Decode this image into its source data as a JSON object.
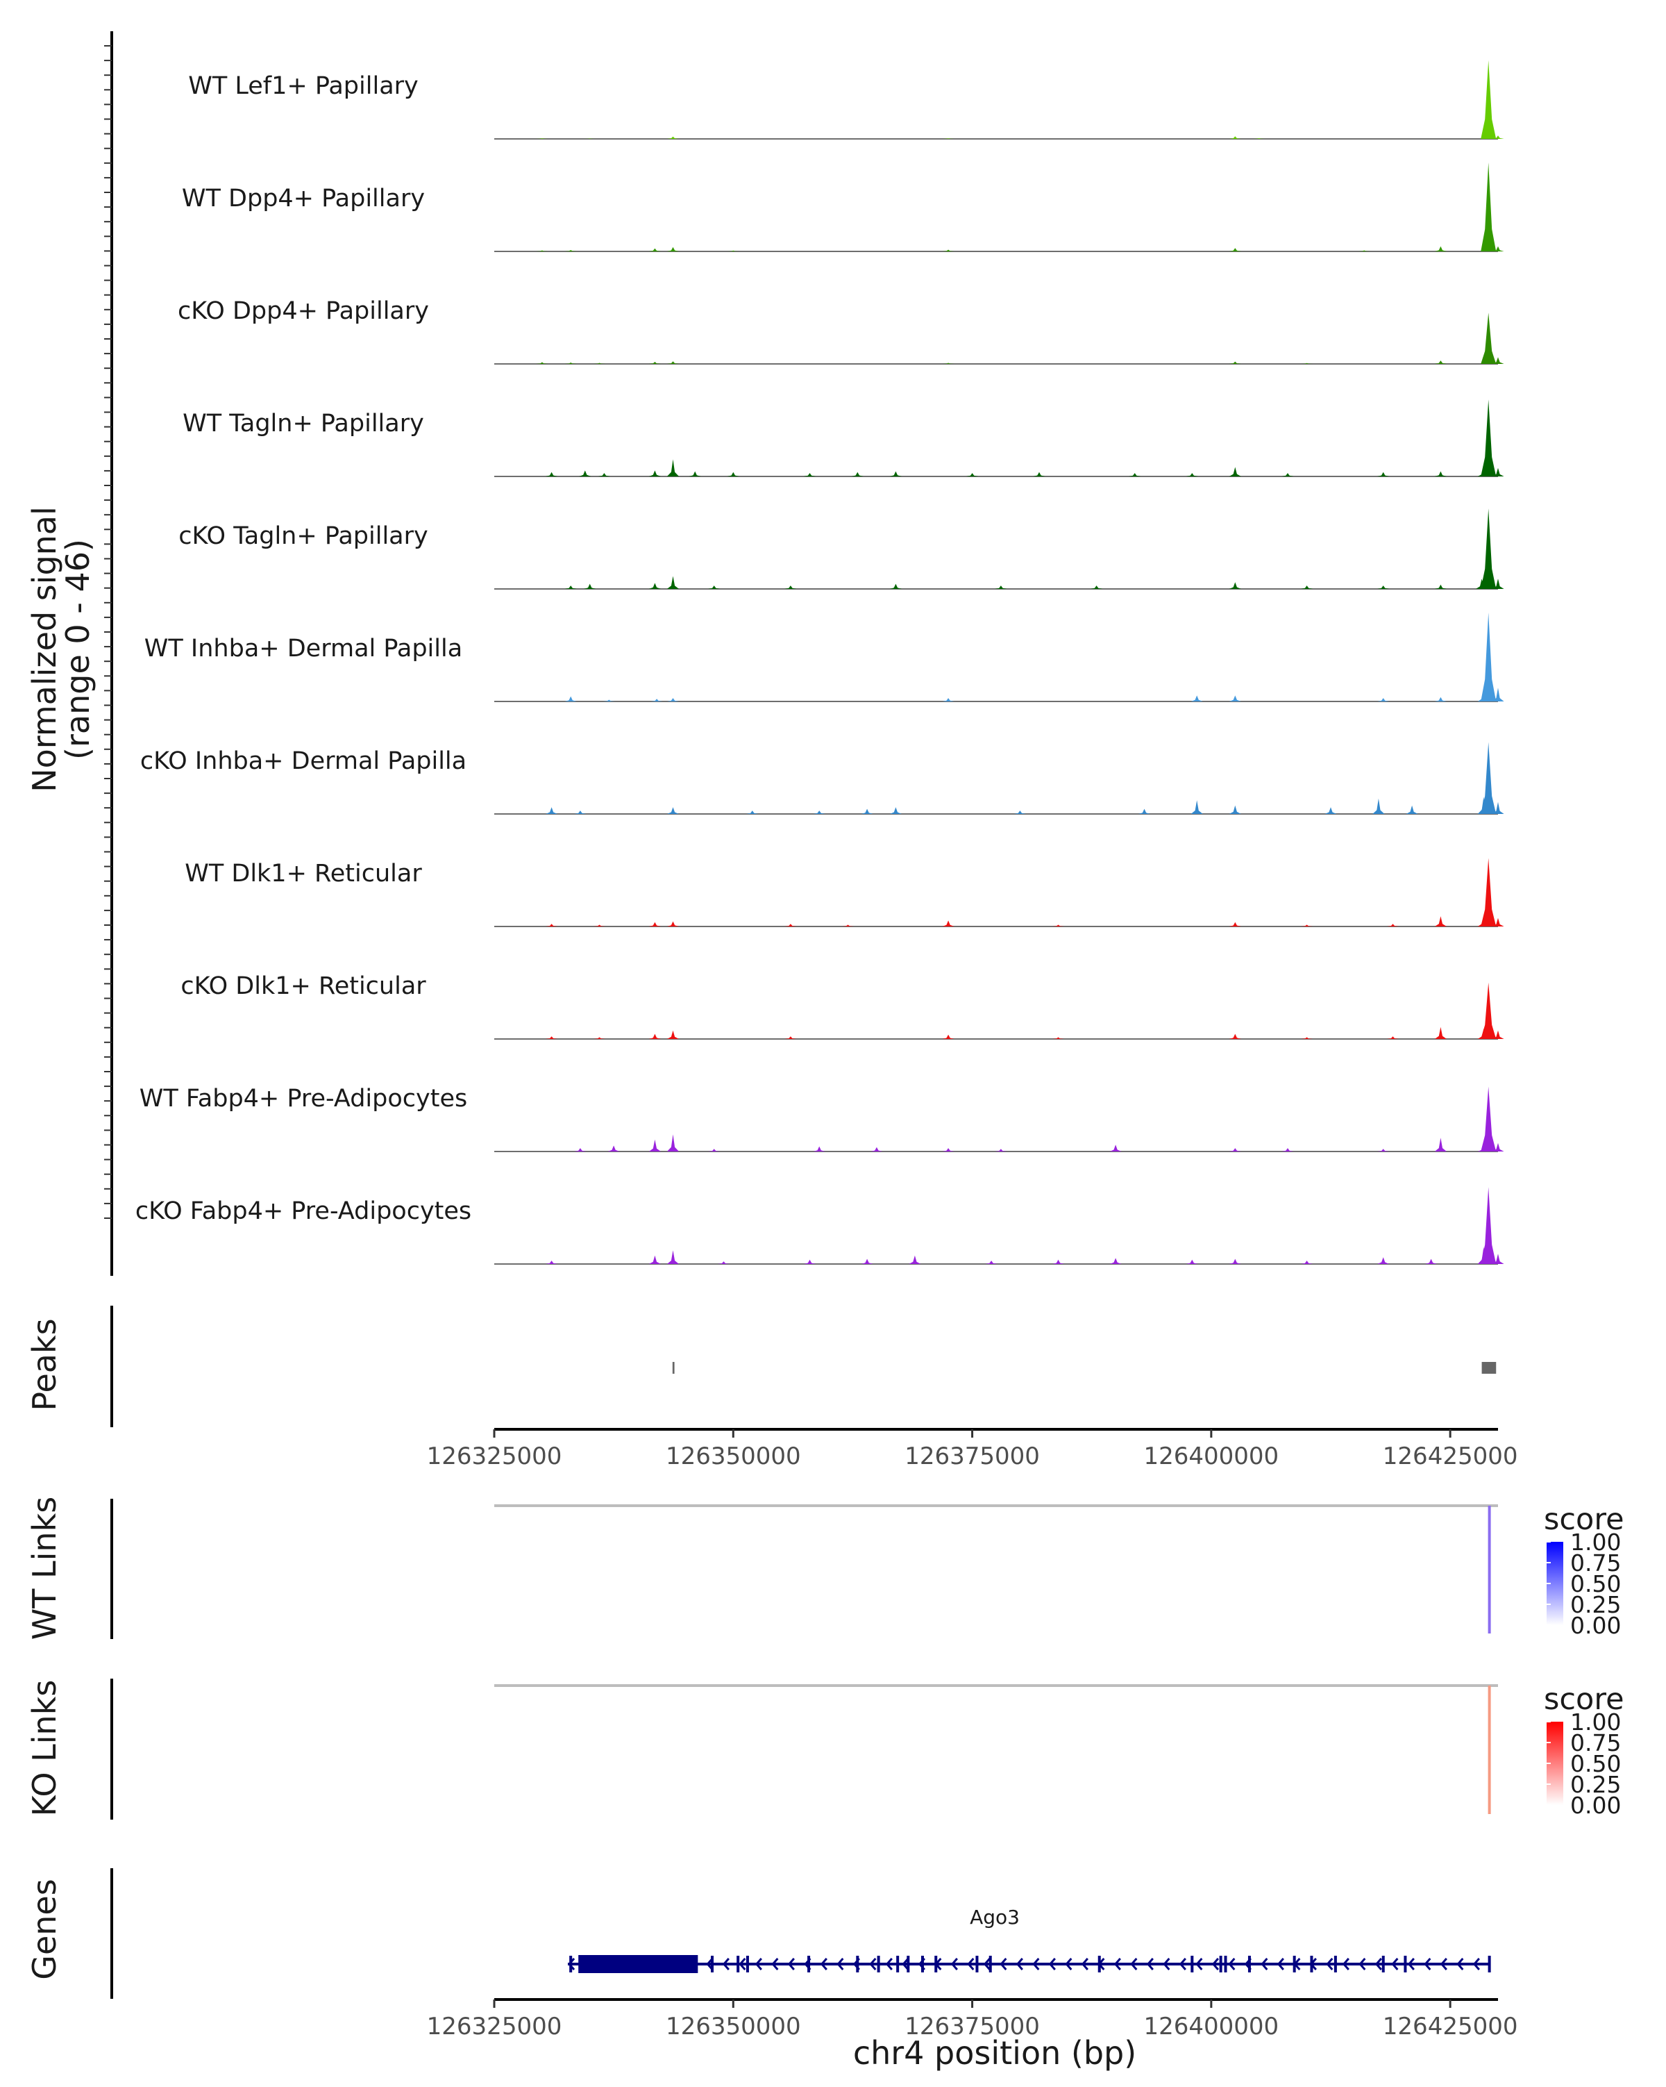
{
  "chart_data": {
    "type": "coverage",
    "region": {
      "chrom": "chr4",
      "start": 126325000,
      "end": 126430000
    },
    "xlabel": "chr4 position (bp)",
    "x_ticks": [
      "126325000",
      "126350000",
      "126375000",
      "126400000",
      "126425000"
    ],
    "x_tick_values": [
      126325000,
      126350000,
      126375000,
      126400000,
      126425000
    ],
    "coverage": {
      "ylabel": "Normalized signal",
      "ylabel_range": "(range 0 - 46)",
      "ylim": [
        0,
        46
      ],
      "tracks": [
        {
          "name": "WT Lef1+ Papillary",
          "color": "#66CC00",
          "points": [
            [
              126330000,
              0.3
            ],
            [
              126335000,
              0.2
            ],
            [
              126343700,
              1.4
            ],
            [
              126372500,
              0.3
            ],
            [
              126402500,
              1.5
            ],
            [
              126405000,
              0.4
            ],
            [
              126429000,
              46
            ],
            [
              126430000,
              2
            ]
          ]
        },
        {
          "name": "WT Dpp4+ Papillary",
          "color": "#339900",
          "points": [
            [
              126330000,
              0.6
            ],
            [
              126333000,
              0.8
            ],
            [
              126341800,
              1.8
            ],
            [
              126343700,
              2.5
            ],
            [
              126350000,
              0.5
            ],
            [
              126372500,
              1.0
            ],
            [
              126402500,
              2.0
            ],
            [
              126416000,
              0.6
            ],
            [
              126424000,
              3.0
            ],
            [
              126429000,
              52
            ],
            [
              126430000,
              3
            ]
          ]
        },
        {
          "name": "cKO Dpp4+ Papillary",
          "color": "#2E8B00",
          "points": [
            [
              126330000,
              1.0
            ],
            [
              126333000,
              0.8
            ],
            [
              126336000,
              0.6
            ],
            [
              126341800,
              1.2
            ],
            [
              126343700,
              1.5
            ],
            [
              126372500,
              0.6
            ],
            [
              126402500,
              1.4
            ],
            [
              126410000,
              0.5
            ],
            [
              126424000,
              2.0
            ],
            [
              126429000,
              30
            ],
            [
              126430000,
              4
            ]
          ]
        },
        {
          "name": "WT Tagln+ Papillary",
          "color": "#006400",
          "points": [
            [
              126331000,
              2.5
            ],
            [
              126334500,
              3.5
            ],
            [
              126336500,
              2.0
            ],
            [
              126341800,
              3.5
            ],
            [
              126343700,
              10.0
            ],
            [
              126346000,
              3.0
            ],
            [
              126350000,
              2.5
            ],
            [
              126358000,
              2.0
            ],
            [
              126363000,
              2.5
            ],
            [
              126367000,
              3.0
            ],
            [
              126375000,
              2.0
            ],
            [
              126382000,
              2.5
            ],
            [
              126392000,
              2.0
            ],
            [
              126398000,
              2.0
            ],
            [
              126402500,
              5.5
            ],
            [
              126408000,
              2.0
            ],
            [
              126418000,
              2.5
            ],
            [
              126424000,
              3.0
            ],
            [
              126428500,
              5.0
            ],
            [
              126429000,
              45
            ],
            [
              126430000,
              5
            ]
          ]
        },
        {
          "name": "cKO Tagln+ Papillary",
          "color": "#006400",
          "points": [
            [
              126333000,
              2.0
            ],
            [
              126335000,
              3.0
            ],
            [
              126341800,
              3.5
            ],
            [
              126343700,
              7.5
            ],
            [
              126348000,
              2.0
            ],
            [
              126356000,
              2.0
            ],
            [
              126367000,
              3.0
            ],
            [
              126378000,
              2.0
            ],
            [
              126388000,
              2.0
            ],
            [
              126402500,
              4.0
            ],
            [
              126410000,
              2.0
            ],
            [
              126418000,
              2.0
            ],
            [
              126424000,
              2.5
            ],
            [
              126428300,
              6.0
            ],
            [
              126429000,
              47
            ],
            [
              126430000,
              6
            ]
          ]
        },
        {
          "name": "WT Inhba+ Dermal Papilla",
          "color": "#4499DD",
          "points": [
            [
              126333000,
              3.0
            ],
            [
              126337000,
              1.0
            ],
            [
              126343700,
              2.0
            ],
            [
              126342000,
              1.5
            ],
            [
              126372500,
              2.0
            ],
            [
              126398500,
              3.5
            ],
            [
              126402500,
              3.5
            ],
            [
              126418000,
              2.0
            ],
            [
              126424000,
              2.5
            ],
            [
              126428500,
              6.0
            ],
            [
              126429000,
              52
            ],
            [
              126430000,
              8
            ]
          ]
        },
        {
          "name": "cKO Inhba+ Dermal Papilla",
          "color": "#3388CC",
          "points": [
            [
              126331000,
              4.0
            ],
            [
              126334000,
              2.0
            ],
            [
              126343700,
              4.0
            ],
            [
              126352000,
              2.0
            ],
            [
              126359000,
              2.0
            ],
            [
              126364000,
              3.0
            ],
            [
              126367000,
              4.0
            ],
            [
              126380000,
              2.0
            ],
            [
              126393000,
              3.0
            ],
            [
              126398500,
              8.0
            ],
            [
              126402500,
              5.0
            ],
            [
              126412500,
              4.0
            ],
            [
              126417500,
              9.0
            ],
            [
              126421000,
              5.0
            ],
            [
              126428500,
              10.0
            ],
            [
              126429000,
              42
            ],
            [
              126430000,
              7
            ]
          ]
        },
        {
          "name": "WT Dlk1+ Reticular",
          "color": "#EE1111",
          "points": [
            [
              126331000,
              1.5
            ],
            [
              126336000,
              1.0
            ],
            [
              126341800,
              2.5
            ],
            [
              126343700,
              3.0
            ],
            [
              126356000,
              1.5
            ],
            [
              126362000,
              1.0
            ],
            [
              126372500,
              3.5
            ],
            [
              126384000,
              1.0
            ],
            [
              126402500,
              2.5
            ],
            [
              126410000,
              1.0
            ],
            [
              126419000,
              1.5
            ],
            [
              126424000,
              6.0
            ],
            [
              126428500,
              6.0
            ],
            [
              126429000,
              40
            ],
            [
              126430000,
              5
            ]
          ]
        },
        {
          "name": "cKO Dlk1+ Reticular",
          "color": "#EE1111",
          "points": [
            [
              126331000,
              1.5
            ],
            [
              126336000,
              1.0
            ],
            [
              126341800,
              3.0
            ],
            [
              126343700,
              5.0
            ],
            [
              126356000,
              1.5
            ],
            [
              126372500,
              2.5
            ],
            [
              126384000,
              1.0
            ],
            [
              126402500,
              3.0
            ],
            [
              126410000,
              1.0
            ],
            [
              126419000,
              1.5
            ],
            [
              126424000,
              7.0
            ],
            [
              126428500,
              6.0
            ],
            [
              126429000,
              33
            ],
            [
              126430000,
              5
            ]
          ]
        },
        {
          "name": "WT Fabp4+ Pre-Adipocytes",
          "color": "#9922DD",
          "points": [
            [
              126334000,
              2.0
            ],
            [
              126337500,
              3.5
            ],
            [
              126341800,
              7.0
            ],
            [
              126343700,
              10.0
            ],
            [
              126348000,
              1.5
            ],
            [
              126359000,
              3.0
            ],
            [
              126365000,
              2.5
            ],
            [
              126372500,
              2.0
            ],
            [
              126378000,
              1.5
            ],
            [
              126390000,
              4.0
            ],
            [
              126402500,
              2.0
            ],
            [
              126408000,
              2.0
            ],
            [
              126418000,
              1.5
            ],
            [
              126424000,
              8.0
            ],
            [
              126428500,
              4.0
            ],
            [
              126429000,
              38
            ],
            [
              126430000,
              5
            ]
          ]
        },
        {
          "name": "cKO Fabp4+ Pre-Adipocytes",
          "color": "#9922DD",
          "points": [
            [
              126331000,
              2.0
            ],
            [
              126341800,
              5.0
            ],
            [
              126343700,
              8.0
            ],
            [
              126349000,
              1.5
            ],
            [
              126358000,
              2.5
            ],
            [
              126364000,
              3.0
            ],
            [
              126369000,
              5.0
            ],
            [
              126377000,
              2.0
            ],
            [
              126384000,
              2.5
            ],
            [
              126390000,
              3.5
            ],
            [
              126398000,
              2.5
            ],
            [
              126402500,
              3.0
            ],
            [
              126410000,
              2.0
            ],
            [
              126418000,
              4.0
            ],
            [
              126423000,
              3.0
            ],
            [
              126428500,
              10.0
            ],
            [
              126429000,
              45
            ],
            [
              126430000,
              6
            ]
          ]
        }
      ]
    },
    "peaks": {
      "label": "Peaks",
      "color": "#666666",
      "ranges": [
        [
          126343650,
          126343850
        ],
        [
          126428300,
          126429800
        ]
      ]
    },
    "links": [
      {
        "label": "WT Links",
        "legend_title": "score",
        "legend_ticks": [
          "1.00",
          "0.75",
          "0.50",
          "0.25",
          "0.00"
        ],
        "color_high": "#0000FF",
        "color_low": "#FFFFFF",
        "at": 126429100,
        "score": 0.55
      },
      {
        "label": "KO Links",
        "legend_title": "score",
        "legend_ticks": [
          "1.00",
          "0.75",
          "0.50",
          "0.25",
          "0.00"
        ],
        "color_high": "#FF0000",
        "color_low": "#FFFFFF",
        "at": 126429100,
        "score": 0.5
      }
    ],
    "genes": {
      "label": "Genes",
      "gene_name": "Ago3",
      "strand": "-",
      "color": "#000080",
      "start": 126332700,
      "end": 126429100,
      "thick_ranges": [
        [
          126333800,
          126346300
        ]
      ],
      "exons": [
        126333000,
        126347800,
        126350500,
        126351500,
        126357900,
        126363000,
        126365200,
        126367200,
        126368300,
        126369800,
        126371200,
        126375500,
        126376900,
        126388300,
        126398000,
        126401000,
        126401500,
        126404000,
        126408700,
        126410500,
        126413000,
        126418000,
        126420300,
        126429100
      ]
    }
  }
}
